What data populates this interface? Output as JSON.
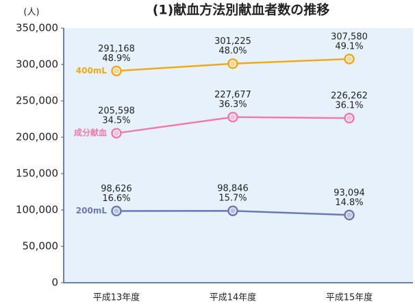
{
  "chart_data": {
    "type": "line",
    "title": "(1)献血方法別献血者数の推移",
    "y_unit": "(人)",
    "categories": [
      "平成13年度",
      "平成14年度",
      "平成15年度"
    ],
    "series": [
      {
        "name": "400mL",
        "color": "#f0a81c",
        "values": [
          291168,
          301225,
          307580
        ],
        "value_labels": [
          "291,168",
          "301,225",
          "307,580"
        ],
        "share_labels": [
          "48.9%",
          "48.0%",
          "49.1%"
        ]
      },
      {
        "name": "成分献血",
        "color": "#f07aa8",
        "values": [
          205598,
          227677,
          226262
        ],
        "value_labels": [
          "205,598",
          "227,677",
          "226,262"
        ],
        "share_labels": [
          "34.5%",
          "36.3%",
          "36.1%"
        ]
      },
      {
        "name": "200mL",
        "color": "#6a78b8",
        "values": [
          98626,
          98846,
          93094
        ],
        "value_labels": [
          "98,626",
          "98,846",
          "93,094"
        ],
        "share_labels": [
          "16.6%",
          "15.7%",
          "14.8%"
        ]
      }
    ],
    "ylim": [
      0,
      350000
    ],
    "yticks": [
      0,
      {
        "value": 50000,
        "label": "50,000"
      },
      {
        "value": 100000,
        "label": "100,000"
      },
      {
        "value": 150000,
        "label": "150,000"
      },
      {
        "value": 200000,
        "label": "200,000"
      },
      {
        "value": 250000,
        "label": "250,000"
      },
      {
        "value": 300000,
        "label": "300,000"
      },
      {
        "value": 350000,
        "label": "350,000"
      }
    ],
    "grid": false
  }
}
